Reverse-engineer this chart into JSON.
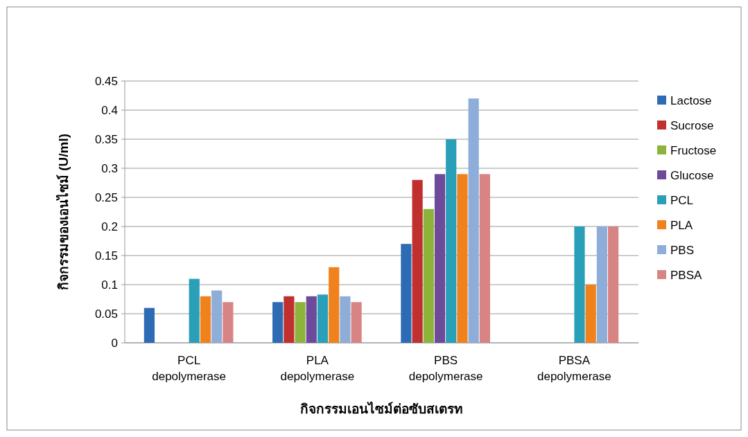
{
  "chart_data": {
    "type": "bar",
    "xlabel": "กิจกรรมเอนไซม์ต่อซับสเตรท",
    "ylabel": "กิจกรรมของเอนไซม์ (U/ml)",
    "categories": [
      "PCL depolymerase",
      "PLA depolymerase",
      "PBS depolymerase",
      "PBSA depolymerase"
    ],
    "series": [
      {
        "name": "Lactose",
        "color": "#2e6bb5",
        "values": [
          0.06,
          0.07,
          0.17,
          null
        ]
      },
      {
        "name": "Sucrose",
        "color": "#c0302f",
        "values": [
          null,
          0.08,
          0.28,
          null
        ]
      },
      {
        "name": "Fructose",
        "color": "#8db43a",
        "values": [
          null,
          0.07,
          0.23,
          null
        ]
      },
      {
        "name": "Glucose",
        "color": "#6d4a9a",
        "values": [
          null,
          0.08,
          0.29,
          null
        ]
      },
      {
        "name": "PCL",
        "color": "#2aa0b8",
        "values": [
          0.11,
          0.083,
          0.35,
          0.2
        ]
      },
      {
        "name": "PLA",
        "color": "#f0821e",
        "values": [
          0.08,
          0.13,
          0.29,
          0.1
        ]
      },
      {
        "name": "PBS",
        "color": "#8fadd9",
        "values": [
          0.09,
          0.08,
          0.42,
          0.2
        ]
      },
      {
        "name": "PBSA",
        "color": "#d98484",
        "values": [
          0.07,
          0.07,
          0.29,
          0.2
        ]
      }
    ],
    "ylim": [
      0,
      0.45
    ],
    "yticks": [
      0,
      0.05,
      0.1,
      0.15,
      0.2,
      0.25,
      0.3,
      0.35,
      0.4,
      0.45
    ],
    "grid": "y",
    "legend": "right"
  }
}
